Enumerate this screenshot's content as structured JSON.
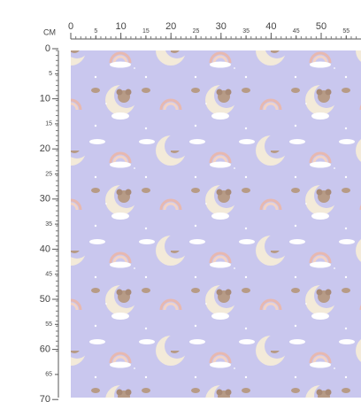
{
  "ruler": {
    "unit": "CM",
    "top_labels": [
      0,
      5,
      10,
      15,
      20,
      25,
      30,
      35,
      40,
      45,
      50,
      55
    ],
    "left_labels": [
      0,
      5,
      10,
      15,
      20,
      25,
      30,
      35,
      40,
      45,
      50,
      55,
      60,
      65,
      70
    ]
  }
}
